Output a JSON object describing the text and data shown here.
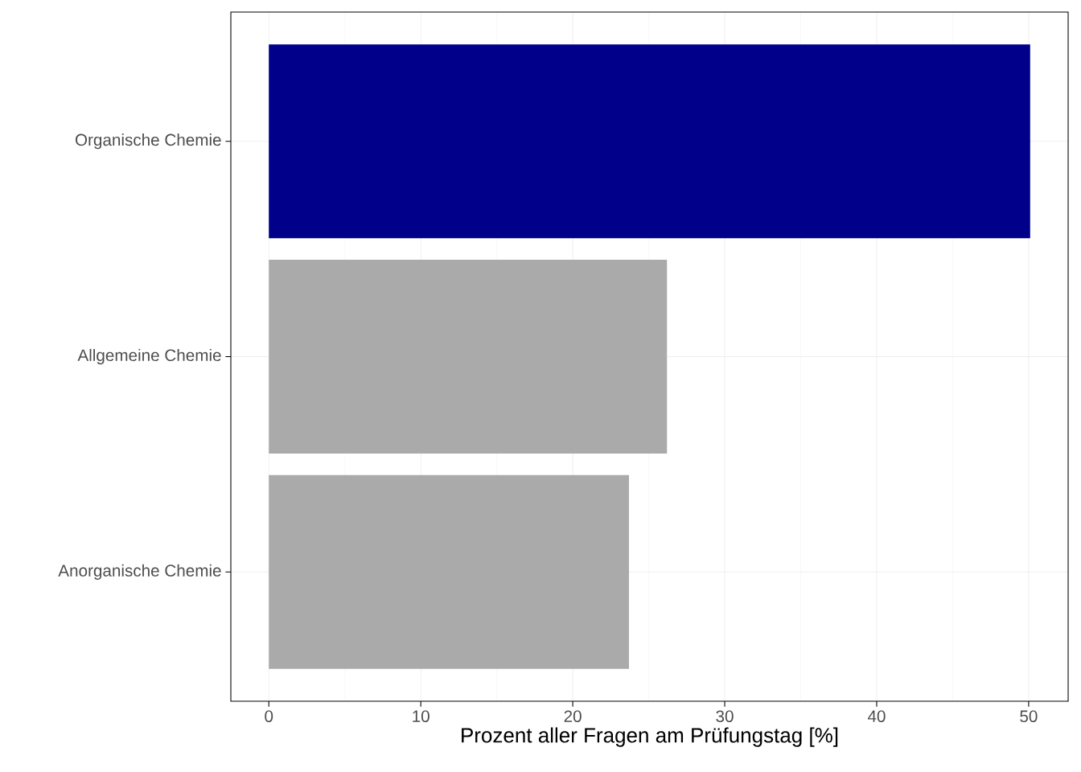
{
  "chart_data": {
    "type": "bar",
    "orientation": "horizontal",
    "xlabel": "Prozent aller Fragen am Prüfungstag [%]",
    "categories": [
      "Organische Chemie",
      "Allgemeine Chemie",
      "Anorganische Chemie"
    ],
    "values": [
      50.1,
      26.2,
      23.7
    ],
    "colors": [
      "#00008b",
      "#aaaaaa",
      "#aaaaaa"
    ],
    "xlim": [
      -2.5,
      52.6
    ],
    "xticks": [
      0,
      10,
      20,
      30,
      40,
      50
    ],
    "grid": true
  }
}
